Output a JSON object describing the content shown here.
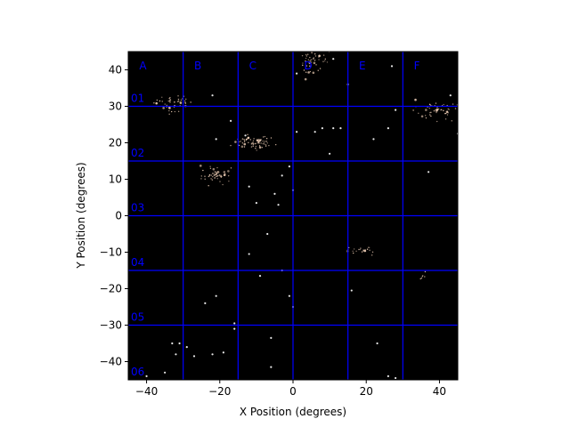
{
  "chart_data": {
    "type": "scatter",
    "title": "",
    "xlabel": "X Position (degrees)",
    "ylabel": "Y Position (degrees)",
    "xlim": [
      -45,
      45
    ],
    "ylim": [
      -45,
      45
    ],
    "xticks": [
      -40,
      -20,
      0,
      20,
      40
    ],
    "yticks": [
      -40,
      -30,
      -20,
      -10,
      0,
      10,
      20,
      30,
      40
    ],
    "background": "#000000",
    "grid_color": "#0000ff",
    "point_color": "#e8c8b0",
    "grid_lines_x": [
      -30,
      -15,
      0,
      15,
      30
    ],
    "grid_lines_y": [
      30,
      15,
      0,
      -15,
      -30
    ],
    "column_labels": [
      {
        "text": "A",
        "x": -42
      },
      {
        "text": "B",
        "x": -27
      },
      {
        "text": "C",
        "x": -12
      },
      {
        "text": "D",
        "x": 3
      },
      {
        "text": "E",
        "x": 18
      },
      {
        "text": "F",
        "x": 33
      }
    ],
    "row_labels": [
      {
        "text": "01",
        "y": 30.5
      },
      {
        "text": "02",
        "y": 15.5
      },
      {
        "text": "03",
        "y": 0.5
      },
      {
        "text": "04",
        "y": -14.5
      },
      {
        "text": "05",
        "y": -29.5
      },
      {
        "text": "06",
        "y": -44.5
      }
    ],
    "clusters": [
      {
        "cx": -33,
        "cy": 31,
        "sx": 2.5,
        "sy": 1.2,
        "n": 45
      },
      {
        "cx": -10.5,
        "cy": 20,
        "sx": 3.0,
        "sy": 0.9,
        "n": 65
      },
      {
        "cx": -21,
        "cy": 11,
        "sx": 2.0,
        "sy": 1.2,
        "n": 50
      },
      {
        "cx": 5.5,
        "cy": 42.5,
        "sx": 2.0,
        "sy": 1.5,
        "n": 45
      },
      {
        "cx": 39,
        "cy": 29,
        "sx": 3.0,
        "sy": 1.5,
        "n": 55
      },
      {
        "cx": 18,
        "cy": -9.5,
        "sx": 2.0,
        "sy": 0.5,
        "n": 22
      },
      {
        "cx": 35.5,
        "cy": -16.5,
        "sx": 0.4,
        "sy": 0.8,
        "n": 6
      }
    ],
    "points": [
      {
        "x": -22,
        "y": 33
      },
      {
        "x": -21,
        "y": 21
      },
      {
        "x": -17,
        "y": 26
      },
      {
        "x": -13,
        "y": 22
      },
      {
        "x": 13,
        "y": 24
      },
      {
        "x": 8,
        "y": 24
      },
      {
        "x": 6,
        "y": 23
      },
      {
        "x": 1,
        "y": 23
      },
      {
        "x": -1,
        "y": 13.5
      },
      {
        "x": 10,
        "y": 17
      },
      {
        "x": 22,
        "y": 21
      },
      {
        "x": 26,
        "y": 24
      },
      {
        "x": 28,
        "y": 29
      },
      {
        "x": 37,
        "y": 12
      },
      {
        "x": -12,
        "y": 8
      },
      {
        "x": -3,
        "y": 11
      },
      {
        "x": 0,
        "y": 7
      },
      {
        "x": -5,
        "y": 6
      },
      {
        "x": -10,
        "y": 3.5
      },
      {
        "x": -4,
        "y": 3
      },
      {
        "x": -7,
        "y": -5
      },
      {
        "x": -12,
        "y": -10.5
      },
      {
        "x": -9,
        "y": -16.5
      },
      {
        "x": -3,
        "y": -15
      },
      {
        "x": -1,
        "y": -22
      },
      {
        "x": 0,
        "y": -25
      },
      {
        "x": 11,
        "y": 24
      },
      {
        "x": 16,
        "y": -20.5
      },
      {
        "x": -24,
        "y": -24
      },
      {
        "x": -21,
        "y": -22
      },
      {
        "x": -16,
        "y": -29.5
      },
      {
        "x": -16,
        "y": -31
      },
      {
        "x": -33,
        "y": -35
      },
      {
        "x": -32,
        "y": -38
      },
      {
        "x": -31,
        "y": -35
      },
      {
        "x": -29,
        "y": -36
      },
      {
        "x": -27,
        "y": -38.5
      },
      {
        "x": -19,
        "y": -37.5
      },
      {
        "x": -22,
        "y": -38
      },
      {
        "x": -6,
        "y": -33.5
      },
      {
        "x": -6,
        "y": -41.5
      },
      {
        "x": 23,
        "y": -35
      },
      {
        "x": 26,
        "y": -44
      },
      {
        "x": 28,
        "y": -44.5
      },
      {
        "x": 11,
        "y": 43
      },
      {
        "x": 15,
        "y": 36
      },
      {
        "x": 1,
        "y": 39
      },
      {
        "x": 45,
        "y": 22.5
      },
      {
        "x": 27,
        "y": 41
      },
      {
        "x": 43,
        "y": 33
      },
      {
        "x": -40,
        "y": -44
      },
      {
        "x": -35,
        "y": -43
      }
    ]
  }
}
